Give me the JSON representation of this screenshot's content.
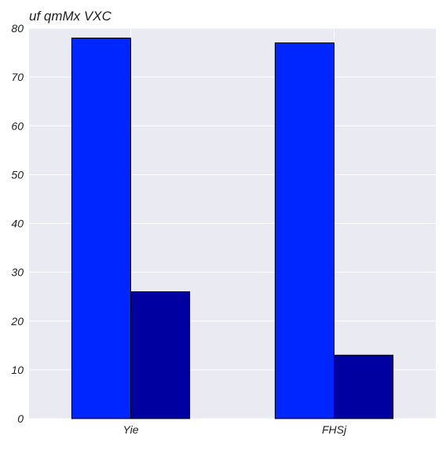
{
  "chart_data": {
    "type": "bar",
    "title": "uf qmMx VXC",
    "xlabel": "",
    "ylabel": "",
    "categories": [
      "Yie",
      "FHSj"
    ],
    "series": [
      {
        "values": [
          78,
          77
        ],
        "color": "#0026ff"
      },
      {
        "values": [
          26,
          13
        ],
        "color": "#0000a0"
      }
    ],
    "ylim": [
      0,
      80
    ],
    "yticks": [
      0,
      10,
      20,
      30,
      40,
      50,
      60,
      70,
      80
    ],
    "grid": true,
    "legend": "none",
    "plot_background": "#eaeaf2",
    "grid_color": "#ffffff",
    "bar_edge_color": "#000000"
  }
}
